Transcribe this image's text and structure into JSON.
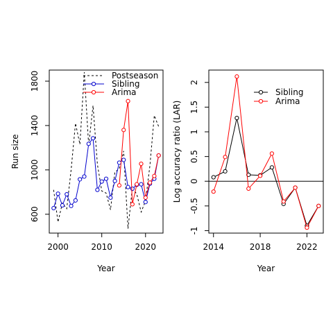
{
  "chart_data": [
    {
      "type": "line",
      "xlabel": "Year",
      "ylabel": "Run size",
      "xlim": [
        1998,
        2024
      ],
      "ylim": [
        430,
        1900
      ],
      "x_ticks": [
        2000,
        2010,
        2020
      ],
      "y_ticks": [
        600,
        1000,
        1400,
        1800
      ],
      "legend_position": "top-right",
      "grid": false,
      "series": [
        {
          "name": "Postseason",
          "style": "dotted",
          "color": "#000000",
          "x": [
            1999,
            2000,
            2001,
            2002,
            2003,
            2004,
            2005,
            2006,
            2007,
            2008,
            2009,
            2010,
            2011,
            2012,
            2013,
            2014,
            2015,
            2016,
            2017,
            2018,
            2019,
            2020,
            2021,
            2022,
            2023
          ],
          "y": [
            820,
            530,
            700,
            650,
            1000,
            1420,
            1230,
            1880,
            1220,
            1580,
            1050,
            810,
            790,
            640,
            980,
            1010,
            1170,
            470,
            840,
            780,
            620,
            720,
            1040,
            1490,
            1390
          ]
        },
        {
          "name": "Sibling",
          "style": "line-points",
          "color": "#0000CD",
          "x": [
            1999,
            2000,
            2001,
            2002,
            2003,
            2004,
            2005,
            2006,
            2007,
            2008,
            2009,
            2010,
            2011,
            2012,
            2013,
            2014,
            2015,
            2016,
            2017,
            2018,
            2019,
            2020,
            2021,
            2022,
            2023
          ],
          "y": [
            655,
            785,
            680,
            780,
            675,
            725,
            915,
            940,
            1235,
            1285,
            820,
            895,
            920,
            750,
            900,
            1065,
            1090,
            845,
            830,
            865,
            870,
            710,
            875,
            920,
            1130
          ]
        },
        {
          "name": "Arima",
          "style": "line-points",
          "color": "#FF0000",
          "x": [
            2014,
            2015,
            2016,
            2017,
            2018,
            2019,
            2020,
            2021,
            2022,
            2023
          ],
          "y": [
            860,
            1360,
            1620,
            690,
            870,
            1055,
            750,
            885,
            945,
            1130
          ]
        }
      ]
    },
    {
      "type": "line",
      "xlabel": "Year",
      "ylabel": "Log accuracy ratio (LAR)",
      "xlim": [
        2013.6,
        2023.4
      ],
      "ylim": [
        -1.05,
        2.25
      ],
      "x_ticks": [
        2014,
        2018,
        2022
      ],
      "y_ticks": [
        -1.0,
        -0.5,
        0.0,
        0.5,
        1.0,
        1.5,
        2.0
      ],
      "reference_line_y": 0,
      "legend_position": "top-right",
      "grid": false,
      "series": [
        {
          "name": "Sibling",
          "color": "#000000",
          "x": [
            2014,
            2015,
            2016,
            2017,
            2018,
            2019,
            2020,
            2021,
            2022,
            2023
          ],
          "y": [
            0.08,
            0.2,
            1.28,
            0.13,
            0.12,
            0.28,
            -0.46,
            -0.13,
            -0.9,
            -0.5
          ]
        },
        {
          "name": "Arima",
          "color": "#FF0000",
          "x": [
            2014,
            2015,
            2016,
            2017,
            2018,
            2019,
            2020,
            2021,
            2022,
            2023
          ],
          "y": [
            -0.21,
            0.49,
            2.12,
            -0.15,
            0.11,
            0.56,
            -0.41,
            -0.13,
            -0.94,
            -0.5
          ]
        }
      ]
    }
  ]
}
